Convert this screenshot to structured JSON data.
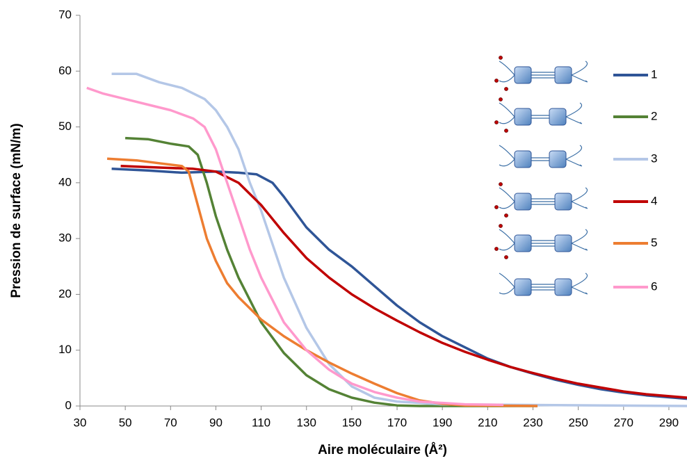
{
  "chart_data": {
    "type": "line",
    "x_label": "Aire moléculaire (Å²)",
    "y_label": "Pression de surface (mN/m)",
    "xlim": [
      30,
      298
    ],
    "ylim": [
      0,
      70
    ],
    "xticks": [
      30,
      50,
      70,
      90,
      110,
      130,
      150,
      170,
      190,
      210,
      230,
      250,
      270,
      290
    ],
    "yticks": [
      0,
      10,
      20,
      30,
      40,
      50,
      60,
      70
    ],
    "series": [
      {
        "name": "1",
        "color": "#2f5597",
        "x": [
          44,
          60,
          75,
          90,
          100,
          108,
          115,
          120,
          130,
          140,
          150,
          160,
          170,
          180,
          190,
          200,
          210,
          220,
          230,
          240,
          250,
          260,
          270,
          280,
          298
        ],
        "values": [
          42.5,
          42.2,
          41.8,
          42,
          41.8,
          41.5,
          40,
          37.5,
          32,
          28,
          25,
          21.5,
          18,
          15,
          12.5,
          10.5,
          8.5,
          7,
          5.8,
          4.7,
          3.8,
          3,
          2.4,
          1.9,
          1.3
        ]
      },
      {
        "name": "2",
        "color": "#548235",
        "x": [
          50,
          60,
          70,
          78,
          82,
          86,
          90,
          95,
          100,
          110,
          120,
          130,
          140,
          150,
          160,
          170,
          180,
          232
        ],
        "values": [
          48,
          47.8,
          47,
          46.5,
          45,
          40,
          34,
          28,
          23,
          15,
          9.5,
          5.5,
          3,
          1.5,
          0.6,
          0.1,
          0,
          0
        ]
      },
      {
        "name": "3",
        "color": "#b4c7e7",
        "x": [
          44,
          55,
          65,
          75,
          85,
          90,
          95,
          100,
          105,
          110,
          115,
          120,
          130,
          140,
          150,
          160,
          170,
          190,
          298
        ],
        "values": [
          59.5,
          59.5,
          58,
          57,
          55,
          53,
          50,
          46,
          40,
          35,
          29,
          23,
          14,
          7.5,
          3.5,
          1.5,
          0.8,
          0.3,
          0
        ]
      },
      {
        "name": "4",
        "color": "#c00000",
        "x": [
          48,
          60,
          80,
          90,
          100,
          110,
          120,
          130,
          140,
          150,
          160,
          170,
          180,
          190,
          200,
          210,
          220,
          230,
          240,
          250,
          260,
          270,
          280,
          298
        ],
        "values": [
          43,
          42.8,
          42.5,
          42,
          40,
          36,
          31,
          26.5,
          23,
          20,
          17.5,
          15.3,
          13.2,
          11.3,
          9.7,
          8.3,
          7,
          5.9,
          4.9,
          4,
          3.3,
          2.6,
          2.1,
          1.5
        ]
      },
      {
        "name": "5",
        "color": "#ed7d31",
        "x": [
          42,
          55,
          65,
          75,
          78,
          82,
          86,
          90,
          95,
          100,
          110,
          120,
          130,
          140,
          150,
          160,
          170,
          180,
          190,
          200,
          232
        ],
        "values": [
          44.3,
          44,
          43.5,
          43,
          42,
          36,
          30,
          26,
          22,
          19.5,
          15.5,
          12.5,
          10,
          7.8,
          5.8,
          4,
          2.3,
          1,
          0.4,
          0.1,
          0
        ]
      },
      {
        "name": "6",
        "color": "#ff99cc",
        "x": [
          33,
          40,
          50,
          60,
          70,
          80,
          85,
          90,
          95,
          100,
          105,
          110,
          120,
          130,
          140,
          150,
          160,
          170,
          180,
          200,
          217
        ],
        "values": [
          57,
          56,
          55,
          54,
          53,
          51.5,
          50,
          46,
          40,
          34,
          28,
          23,
          15,
          10,
          6.5,
          4,
          2.5,
          1.5,
          0.8,
          0.3,
          0.2
        ]
      }
    ]
  }
}
